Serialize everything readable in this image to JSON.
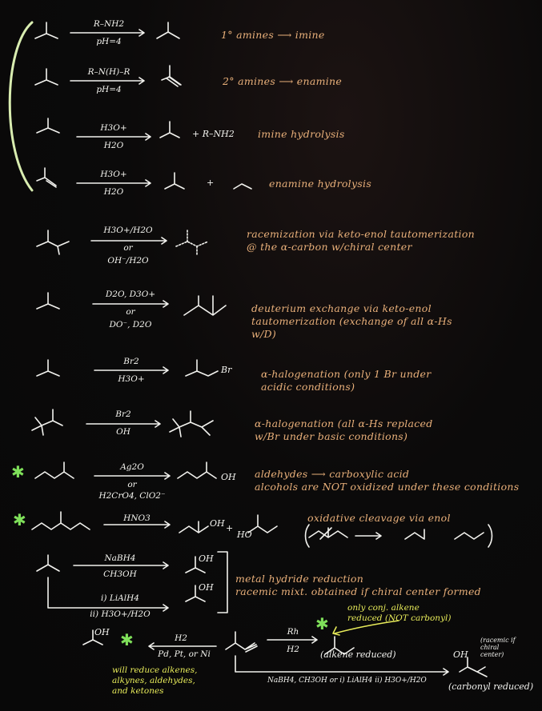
{
  "reactions": [
    {
      "reagent_top": "R–NH2",
      "reagent_bottom": "pH=4",
      "note": "1° amines ⟶ imine"
    },
    {
      "reagent_top": "R–N(H)–R",
      "reagent_bottom": "pH=4",
      "note": "2° amines ⟶ enamine"
    },
    {
      "reagent_top": "H3O+",
      "reagent_bottom": "H2O",
      "product_extra": "+ R–NH2",
      "note": "imine hydrolysis"
    },
    {
      "reagent_top": "H3O+",
      "reagent_bottom": "H2O",
      "product_extra": "+",
      "note": "enamine hydrolysis"
    },
    {
      "reagent_top": "H3O+/H2O",
      "reagent_mid": "or",
      "reagent_bottom": "OH⁻/H2O",
      "note_lines": [
        "racemization via keto-enol tautomerization",
        "@ the α-carbon w/chiral center"
      ]
    },
    {
      "reagent_top": "D2O, D3O+",
      "reagent_mid": "or",
      "reagent_bottom": "DO⁻, D2O",
      "note_lines": [
        "deuterium exchange via keto-enol",
        "tautomerization (exchange of all α-Hs",
        "w/D)"
      ]
    },
    {
      "reagent_top": "Br2",
      "reagent_bottom": "H3O+",
      "note_lines": [
        "α-halogenation (only 1 Br under",
        "acidic conditions)"
      ]
    },
    {
      "reagent_top": "Br2",
      "reagent_bottom": "OH",
      "note_lines": [
        "α-halogenation (all α-Hs replaced",
        "w/Br under basic conditions)"
      ]
    },
    {
      "reagent_top": "Ag2O",
      "reagent_mid": "or",
      "reagent_bottom": "H2CrO4, ClO2⁻",
      "product_label": "OH",
      "note_lines": [
        "aldehydes ⟶ carboxylic acid",
        "alcohols are NOT oxidized under these conditions"
      ]
    },
    {
      "reagent_top": "HNO3",
      "product_extra": "+",
      "product_label": "OH",
      "product_label2": "HO",
      "note_lines": [
        "oxidative cleavage via enol"
      ]
    },
    {
      "reagent_top": "NaBH4",
      "reagent_bottom": "CH3OH",
      "reagent2_top": "i) LiAlH4",
      "reagent2_bottom": "ii) H3O+/H2O",
      "product_label": "OH",
      "note_lines": [
        "metal hydride reduction",
        "racemic mixt. obtained if chiral center formed"
      ]
    }
  ],
  "bottom": {
    "left_label": "OH",
    "h2_top": "H2",
    "h2_bottom": "Pd, Pt, or Ni",
    "h2_note_lines": [
      "will reduce alkenes,",
      "alkynes, aldehydes,",
      "and ketones"
    ],
    "rh_top": "Rh",
    "rh_bottom": "H2",
    "rh_note_lines": [
      "only conj. alkene",
      "reduced (NOT carbonyl)"
    ],
    "rh_product_note": "(alkene reduced)",
    "hydride_reagents": "NaBH4, CH3OH  or  i) LiAlH4  ii) H3O+/H2O",
    "hydride_product_label": "OH",
    "hydride_product_note": "(carbonyl reduced)",
    "racemic_note_lines": [
      "(racemic if",
      "chiral",
      "center)"
    ]
  },
  "symbols": {
    "star": "✱"
  },
  "colors": {
    "background": "#0a0909",
    "ink": "#f2f2ee",
    "note": "#e9b07a",
    "highlight": "#e8ec5a",
    "star": "#7fe05a",
    "bracket": "#d9edb0"
  }
}
